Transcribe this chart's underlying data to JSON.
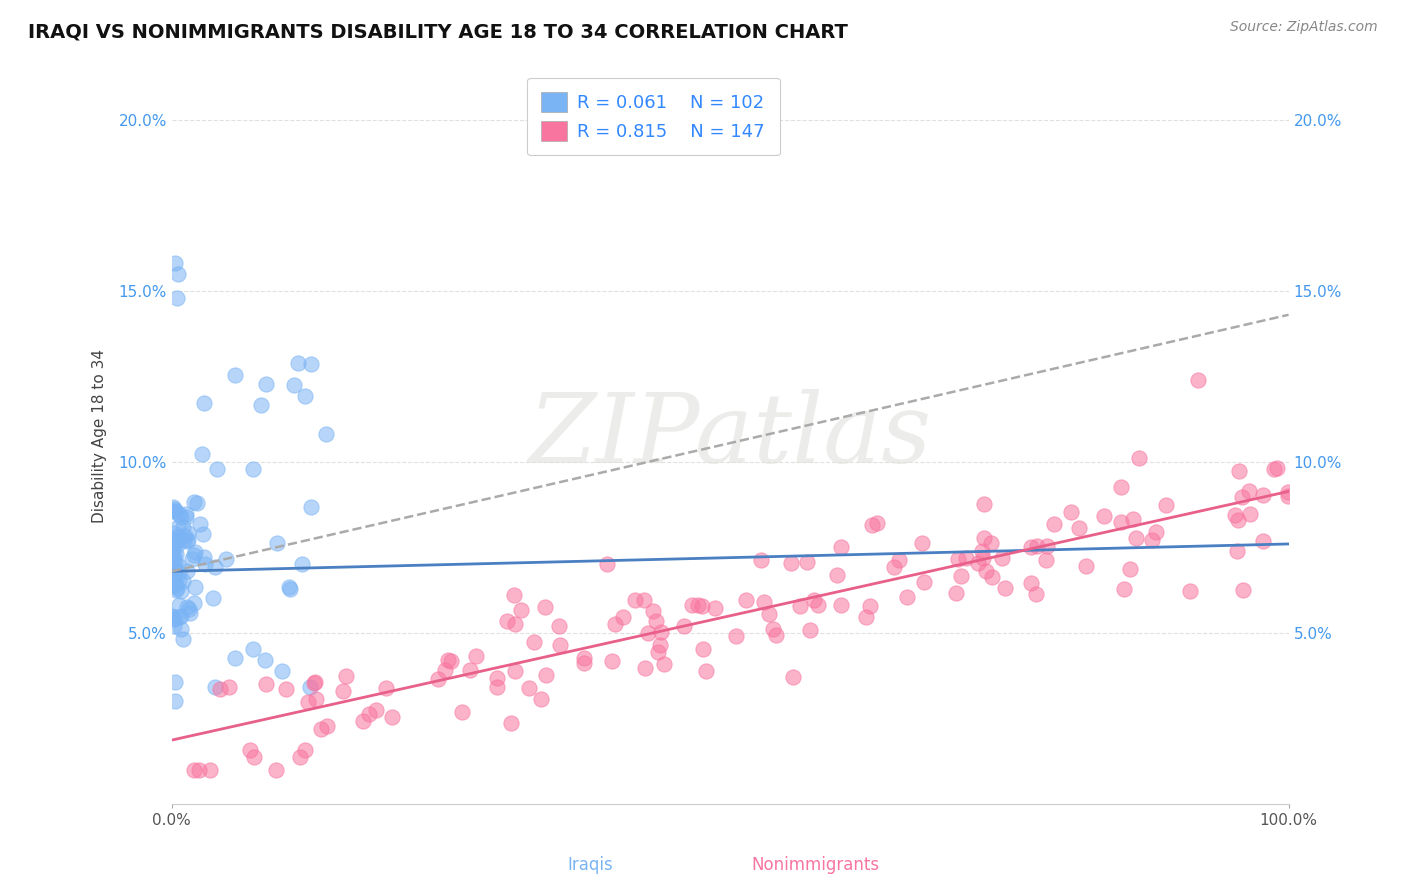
{
  "title": "IRAQI VS NONIMMIGRANTS DISABILITY AGE 18 TO 34 CORRELATION CHART",
  "source": "Source: ZipAtlas.com",
  "ylabel": "Disability Age 18 to 34",
  "legend_iraqi_R": "R = 0.061",
  "legend_iraqi_N": "N = 102",
  "legend_nonimm_R": "R = 0.815",
  "legend_nonimm_N": "N = 147",
  "iraqi_color": "#7ab4f5",
  "nonimm_color": "#f875a0",
  "iraqi_line_color": "#4a7fc1",
  "nonimm_line_color": "#e8608a",
  "dashed_line_color": "#aaaaaa",
  "background_color": "#ffffff",
  "grid_color": "#e0e0e0",
  "tick_color_y": "#4499ee",
  "tick_color_x": "#555555",
  "xlim": [
    0.0,
    1.0
  ],
  "ylim": [
    0.0,
    0.215
  ],
  "yticks": [
    0.05,
    0.1,
    0.15,
    0.2
  ],
  "ytick_labels": [
    "5.0%",
    "10.0%",
    "15.0%",
    "20.0%"
  ],
  "xtick_labels": [
    "0.0%",
    "100.0%"
  ],
  "title_fontsize": 14,
  "axis_label_fontsize": 11,
  "tick_fontsize": 11,
  "legend_fontsize": 13,
  "source_fontsize": 10,
  "bottom_label_iraqi": "Iraqis",
  "bottom_label_nonimm": "Nonimmigrants",
  "watermark_text": "ZIPatlas"
}
